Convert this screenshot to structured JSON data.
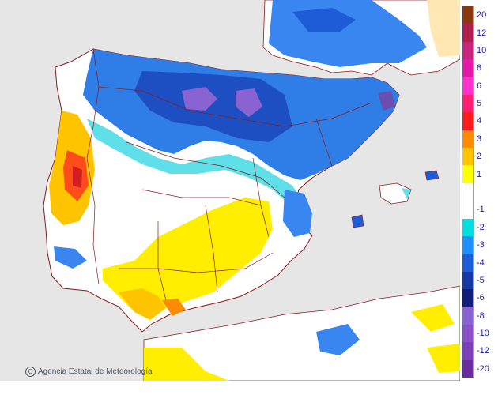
{
  "credit": {
    "text": "Agencia Estatal de Meteorología",
    "icon": "copyright-icon"
  },
  "legend": {
    "entries": [
      {
        "label": "20",
        "color": "#8b3a10"
      },
      {
        "label": "12",
        "color": "#b01e4e"
      },
      {
        "label": "10",
        "color": "#c8237a"
      },
      {
        "label": "8",
        "color": "#e61aa8"
      },
      {
        "label": "6",
        "color": "#ff33cc"
      },
      {
        "label": "5",
        "color": "#ff1f6e"
      },
      {
        "label": "4",
        "color": "#ff1a1a"
      },
      {
        "label": "3",
        "color": "#ff8c00"
      },
      {
        "label": "2",
        "color": "#ffc400"
      },
      {
        "label": "1",
        "color": "#ffff00"
      },
      {
        "label": "",
        "color": "#ffffff"
      },
      {
        "label": "-1",
        "color": "#ffffff"
      },
      {
        "label": "-2",
        "color": "#00e0e0"
      },
      {
        "label": "-3",
        "color": "#1e90ff"
      },
      {
        "label": "-4",
        "color": "#1e5bd6"
      },
      {
        "label": "-5",
        "color": "#1538a6"
      },
      {
        "label": "-6",
        "color": "#0f1f7a"
      },
      {
        "label": "-8",
        "color": "#8a63d2"
      },
      {
        "label": "-10",
        "color": "#8a50c8"
      },
      {
        "label": "-12",
        "color": "#7a3fb5"
      },
      {
        "label": "-20",
        "color": "#6a2e9e"
      }
    ]
  },
  "colors": {
    "sea": "#e6e6e6",
    "land": "#ffffff",
    "border": "#8b1a1a",
    "coast": "#8b1a1a"
  }
}
